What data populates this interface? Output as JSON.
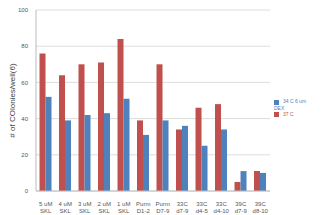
{
  "chart_data": {
    "type": "bar",
    "y_label": "# of COlonies/well(6)",
    "categories": [
      "5 uM SKL",
      "4 uM SKL",
      "3 uM SKL",
      "2 uM SKL",
      "1 uM SKL",
      "Purm D1-2",
      "Purm D7-9",
      "33C d7-9",
      "33C d4-5",
      "33C d4-10",
      "39C d7-9",
      "39C d8-10"
    ],
    "series": [
      {
        "name": "37 C",
        "color": "#c0504d",
        "values": [
          76,
          64,
          70,
          71,
          84,
          39,
          70,
          34,
          46,
          48,
          5,
          11
        ]
      },
      {
        "name": "34 C 6 um DEX",
        "color": "#4f81bd",
        "values": [
          52,
          39,
          42,
          43,
          51,
          31,
          39,
          36,
          25,
          34,
          11,
          10
        ]
      }
    ],
    "ylim": [
      0,
      100
    ],
    "yticks": [
      0,
      20,
      40,
      60,
      80,
      100
    ],
    "grid": true,
    "legend": "right"
  }
}
